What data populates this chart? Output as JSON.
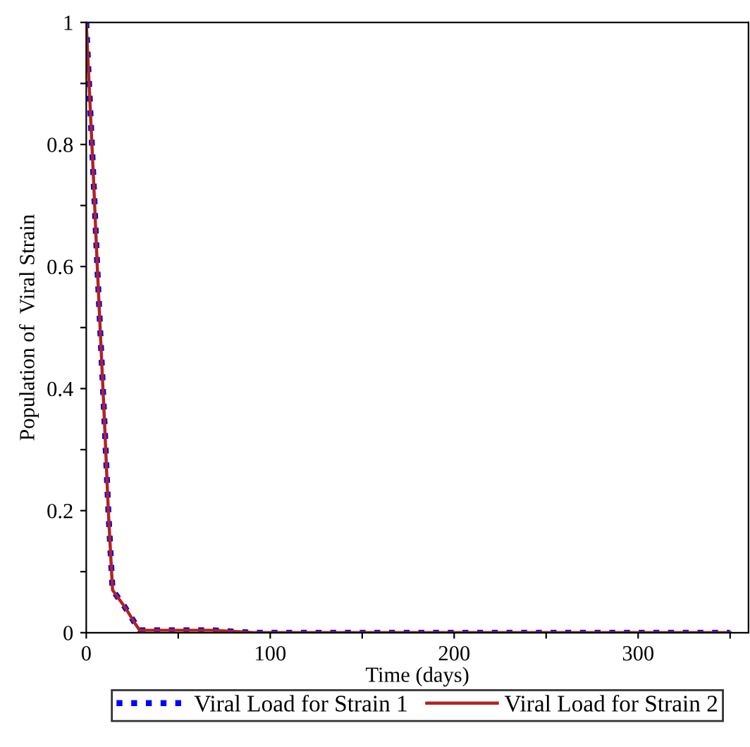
{
  "chart_data": {
    "type": "line",
    "xlabel": "Time (days)",
    "ylabel": "Population of  Viral Strain",
    "xlim": [
      0,
      360
    ],
    "ylim": [
      0,
      1
    ],
    "xticks": [
      0,
      {
        "value": 50,
        "label": null
      },
      100,
      {
        "value": 150,
        "label": null
      },
      200,
      {
        "value": 250,
        "label": null
      },
      300,
      {
        "value": 350,
        "label": null
      }
    ],
    "yticks": [
      0,
      {
        "value": 0.1,
        "label": null
      },
      0.2,
      {
        "value": 0.3,
        "label": null
      },
      0.4,
      {
        "value": 0.5,
        "label": null
      },
      0.6,
      {
        "value": 0.7,
        "label": null
      },
      0.8,
      {
        "value": 0.9,
        "label": null
      },
      1
    ],
    "x": [
      0,
      2,
      4,
      6,
      8,
      10,
      12,
      14.3,
      21,
      27,
      29,
      40,
      50,
      60,
      69,
      80,
      91,
      100,
      125,
      150,
      175,
      200,
      225,
      250,
      275,
      300,
      325,
      350
    ],
    "series": [
      {
        "name": "Viral Load for Strain 1",
        "color": "#0000ff",
        "line_style": "dotted",
        "values": [
          1,
          0.87,
          0.74,
          0.6,
          0.47,
          0.34,
          0.2,
          0.07,
          0.042,
          0.013,
          0.004,
          0.004,
          0.004,
          0.004,
          0.004,
          0.002,
          0,
          0,
          0,
          0,
          0,
          0,
          0,
          0,
          0,
          0,
          0,
          0
        ]
      },
      {
        "name": "Viral Load for Strain 2",
        "color": "#b22222",
        "line_style": "solid",
        "values": [
          1,
          0.87,
          0.74,
          0.6,
          0.47,
          0.34,
          0.2,
          0.07,
          0.042,
          0.013,
          0.004,
          0.004,
          0.004,
          0.004,
          0.004,
          0.002,
          0,
          0,
          0,
          0,
          0,
          0,
          0,
          0,
          0,
          0,
          0,
          0
        ]
      }
    ],
    "legend": "bottom",
    "grid": false
  }
}
